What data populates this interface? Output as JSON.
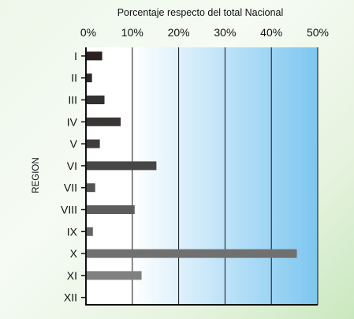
{
  "chart_data": {
    "type": "bar",
    "orientation": "horizontal",
    "title": "Porcentaje respecto del total Nacional",
    "ylabel": "REGION",
    "categories": [
      "I",
      "II",
      "III",
      "IV",
      "V",
      "VI",
      "VII",
      "VIII",
      "IX",
      "X",
      "XI",
      "XII"
    ],
    "values": [
      3.5,
      1.3,
      4.0,
      7.5,
      3.0,
      15.2,
      2.0,
      10.5,
      1.5,
      45.5,
      12.0,
      0.0
    ],
    "bar_colors": [
      "#2b2020",
      "#2e2828",
      "#333030",
      "#3a3636",
      "#3f3c3c",
      "#474646",
      "#535353",
      "#5c5c5c",
      "#666666",
      "#707070",
      "#808080",
      "#8a8a8a"
    ],
    "xlim": [
      0,
      50
    ],
    "xticks": [
      0,
      10,
      20,
      30,
      40,
      50
    ],
    "xtick_labels": [
      "0%",
      "10%",
      "20%",
      "30%",
      "40%",
      "50%"
    ],
    "grid": true,
    "plot_gradient": [
      "#ffffff",
      "#7dc6f0"
    ]
  }
}
